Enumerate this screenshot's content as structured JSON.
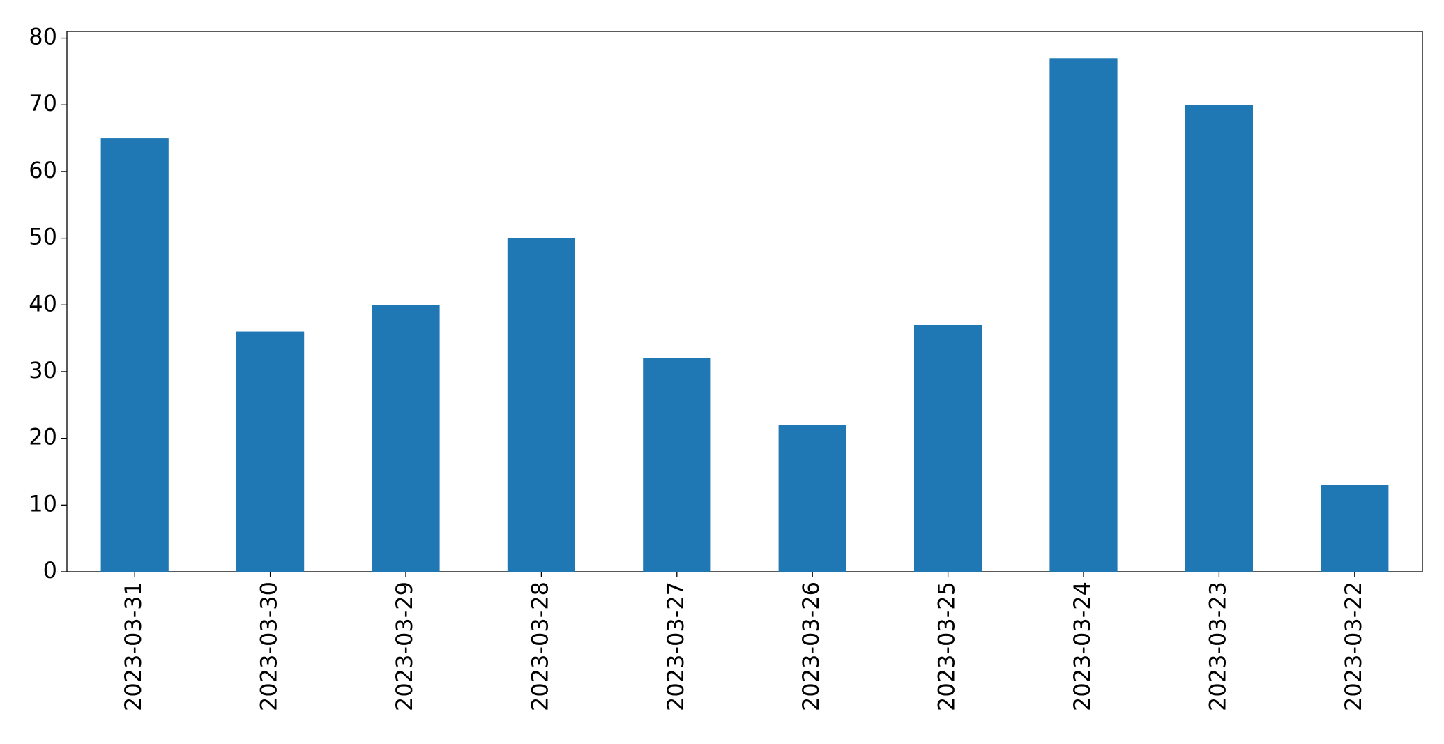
{
  "chart_data": {
    "type": "bar",
    "categories": [
      "2023-03-31",
      "2023-03-30",
      "2023-03-29",
      "2023-03-28",
      "2023-03-27",
      "2023-03-26",
      "2023-03-25",
      "2023-03-24",
      "2023-03-23",
      "2023-03-22"
    ],
    "values": [
      65,
      36,
      40,
      50,
      32,
      22,
      37,
      77,
      70,
      13
    ],
    "color": "#1f77b4",
    "ylim": [
      0,
      81
    ],
    "yticks": [
      0,
      10,
      20,
      30,
      40,
      50,
      60,
      70,
      80
    ],
    "grid": false
  }
}
